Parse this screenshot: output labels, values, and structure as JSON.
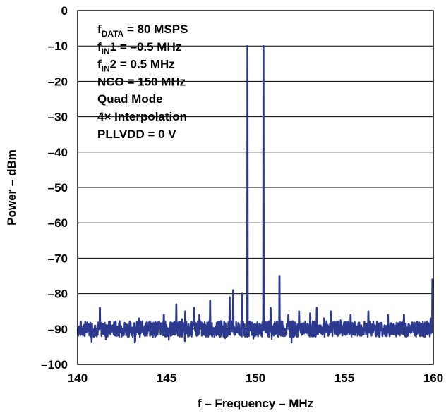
{
  "chart_data": {
    "type": "line",
    "title": "",
    "xlabel": "f – Frequency – MHz",
    "ylabel": "Power – dBm",
    "xlim": [
      140,
      160
    ],
    "ylim": [
      -100,
      0
    ],
    "x_ticks": [
      140,
      145,
      150,
      155,
      160
    ],
    "y_ticks": [
      0,
      -10,
      -20,
      -30,
      -40,
      -50,
      -60,
      -70,
      -80,
      -90,
      -100
    ],
    "x_tick_labels": [
      "140",
      "145",
      "150",
      "155",
      "160"
    ],
    "y_tick_labels": [
      "0",
      "–10",
      "–20",
      "–30",
      "–40",
      "–50",
      "–60",
      "–70",
      "–80",
      "–90",
      "–100"
    ],
    "grid": "horizontal",
    "legend": "none",
    "line_color": "#2b3a8f",
    "noise_floor_dbm": -90,
    "series": [
      {
        "x": [
          140.0,
          141.2,
          141.25,
          141.3,
          142.0,
          143.4,
          143.45,
          143.5,
          144.2,
          144.8,
          144.85,
          144.9,
          145.5,
          145.55,
          145.6,
          146.0,
          146.05,
          146.1,
          146.5,
          146.55,
          146.6,
          146.8,
          146.85,
          146.9,
          147.4,
          147.45,
          147.5,
          148.0,
          148.5,
          148.55,
          148.6,
          148.7,
          148.75,
          148.8,
          149.2,
          149.25,
          149.3,
          149.5,
          149.55,
          149.6,
          150.0,
          150.4,
          150.45,
          150.5,
          150.8,
          150.85,
          150.9,
          151.3,
          151.35,
          151.4,
          151.8,
          151.85,
          151.9,
          152.4,
          152.45,
          152.5,
          153.4,
          153.45,
          153.5,
          153.8,
          153.85,
          153.9,
          154.2,
          154.25,
          154.3,
          155.0,
          155.3,
          155.35,
          155.4,
          156.0,
          156.3,
          156.35,
          156.4,
          157.0,
          157.4,
          157.45,
          157.5,
          158.0,
          158.3,
          158.35,
          158.4,
          159.0,
          159.8,
          159.85,
          159.9,
          159.95,
          160.0
        ],
        "y": [
          -90,
          -90,
          -84,
          -90,
          -90,
          -90,
          -87,
          -90,
          -90,
          -90,
          -86,
          -90,
          -90,
          -83,
          -90,
          -90,
          -85,
          -90,
          -90,
          -84,
          -90,
          -90,
          -86,
          -90,
          -90,
          -82,
          -90,
          -90,
          -90,
          -81,
          -90,
          -90,
          -79,
          -90,
          -90,
          -80,
          -90,
          -90,
          -10,
          -90,
          -90,
          -90,
          -10,
          -90,
          -90,
          -84,
          -90,
          -90,
          -75,
          -90,
          -90,
          -86,
          -90,
          -90,
          -85,
          -90,
          -90,
          -84,
          -90,
          -90,
          -87,
          -90,
          -90,
          -85,
          -90,
          -90,
          -90,
          -86,
          -90,
          -90,
          -90,
          -85,
          -90,
          -90,
          -90,
          -86,
          -90,
          -90,
          -90,
          -86,
          -90,
          -90,
          -90,
          -87,
          -90,
          -76,
          -76
        ]
      }
    ],
    "annotations": [
      {
        "main": "f",
        "sub": "DATA",
        "rest": " = 80 MSPS"
      },
      {
        "main": "f",
        "sub": "IN",
        "rest": "1 = –0.5 MHz"
      },
      {
        "main": "f",
        "sub": "IN",
        "rest": "2 = 0.5 MHz"
      },
      {
        "main": "NCO = 150 MHz",
        "sub": "",
        "rest": ""
      },
      {
        "main": "Quad Mode",
        "sub": "",
        "rest": ""
      },
      {
        "main": "4× Interpolation",
        "sub": "",
        "rest": ""
      },
      {
        "main": "PLLVDD = 0 V",
        "sub": "",
        "rest": ""
      }
    ]
  }
}
